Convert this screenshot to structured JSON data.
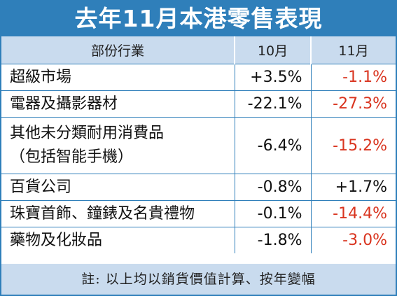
{
  "title": "去年11月本港零售表現",
  "headers": [
    "部份行業",
    "10月",
    "11月"
  ],
  "rows": [
    {
      "category": [
        "超級市場"
      ],
      "oct": "+3.5%",
      "nov": "-1.1%"
    },
    {
      "category": [
        "電器及攝影器材"
      ],
      "oct": "-22.1%",
      "nov": "-27.3%"
    },
    {
      "category": [
        "其他未分類耐用消費品",
        "（包括智能手機）"
      ],
      "oct": "-6.4%",
      "nov": "-15.2%"
    },
    {
      "category": [
        "百貨公司"
      ],
      "oct": "-0.8%",
      "nov": "+1.7%"
    },
    {
      "category": [
        "珠寶首飾、鐘錶及名貴禮物"
      ],
      "oct": "-0.1%",
      "nov": "-14.4%"
    },
    {
      "category": [
        "藥物及化妝品"
      ],
      "oct": "-1.8%",
      "nov": "-3.0%"
    }
  ],
  "note": "註: 以上均以銷貨價值計算、按年變幅",
  "colors": {
    "accent": "#2f7fba",
    "header_bg": "#c9dbee",
    "negative": "#d9341f",
    "text": "#111111"
  }
}
